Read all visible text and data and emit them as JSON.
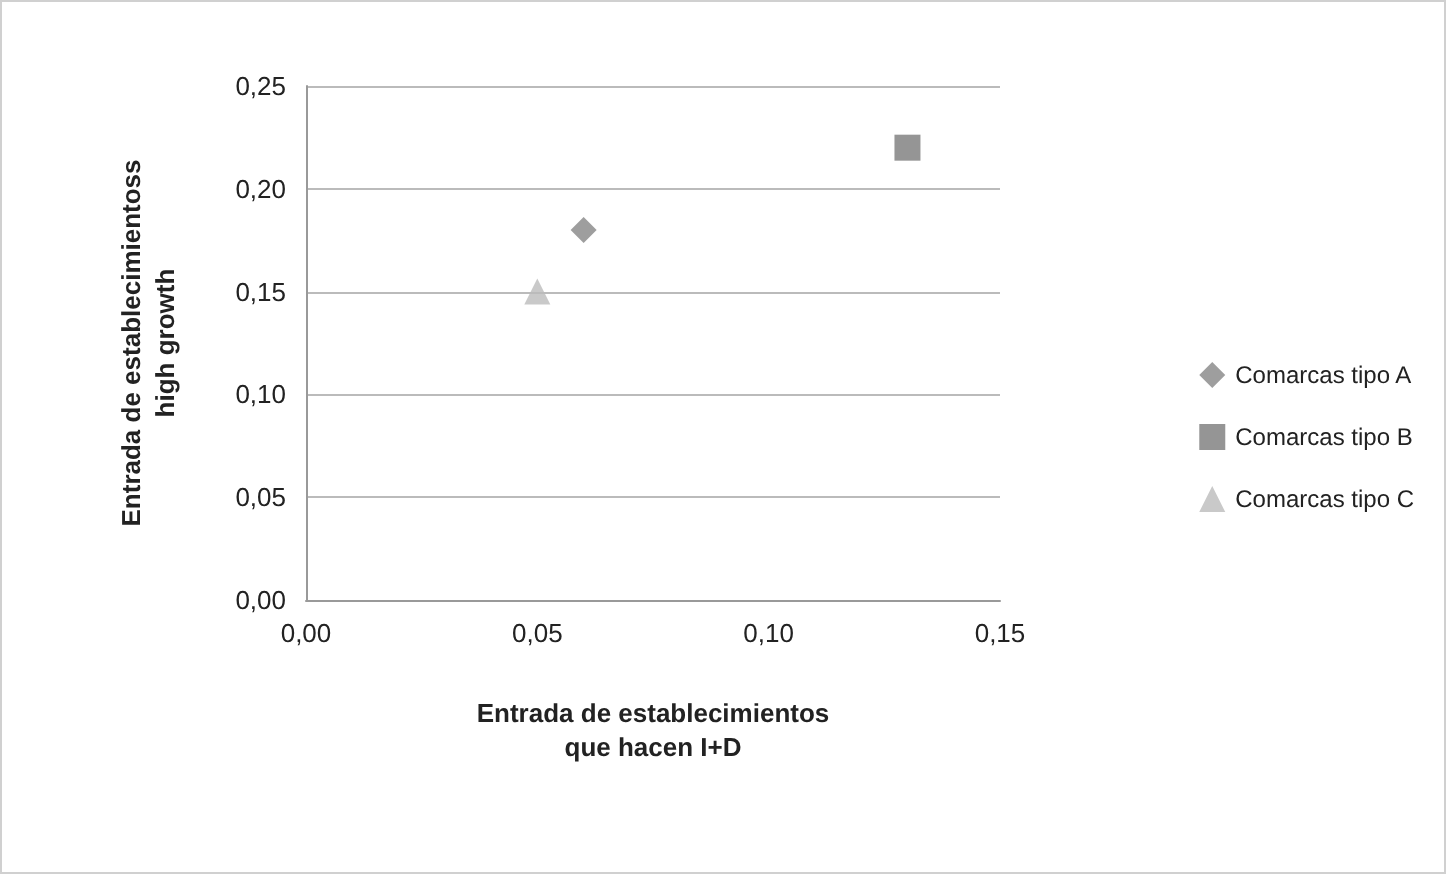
{
  "chart_data": {
    "type": "scatter",
    "xlabel": "Entrada de establecimientos\nque hacen I+D",
    "ylabel": "Entrada de establecimientoss\nhigh growth",
    "series": [
      {
        "name": "Comarcas tipo A",
        "color": "#868686",
        "marker": "diamond",
        "x": [
          0.06
        ],
        "values": [
          0.18
        ]
      },
      {
        "name": "Comarcas tipo B",
        "color": "#7a7a7a",
        "marker": "square",
        "x": [
          0.13
        ],
        "values": [
          0.22
        ]
      },
      {
        "name": "Comarcas tipo C",
        "color": "#bcbcbc",
        "marker": "triangle",
        "x": [
          0.05
        ],
        "values": [
          0.15
        ]
      }
    ],
    "xlim": [
      0,
      0.15
    ],
    "xticks": [
      {
        "value": 0,
        "label": "0,00"
      },
      {
        "value": 0.05,
        "label": "0,05"
      },
      {
        "value": 0.1,
        "label": "0,10"
      },
      {
        "value": 0.15,
        "label": "0,15"
      }
    ],
    "ylim": [
      0,
      0.25
    ],
    "yticks": [
      {
        "value": 0,
        "label": "0,00"
      },
      {
        "value": 0.05,
        "label": "0,05"
      },
      {
        "value": 0.1,
        "label": "0,10"
      },
      {
        "value": 0.15,
        "label": "0,15"
      },
      {
        "value": 0.2,
        "label": "0,20"
      },
      {
        "value": 0.25,
        "label": "0,25"
      }
    ],
    "grid": "y",
    "legend": "right"
  }
}
